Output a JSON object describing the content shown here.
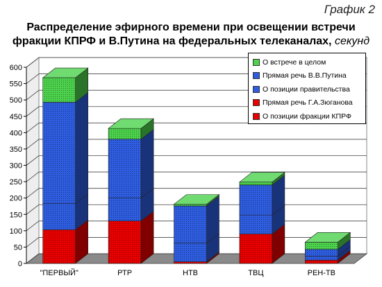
{
  "caption": "График 2",
  "title_line1": "Распределение эфирного времени при освещении встречи",
  "title_line2": "фракции КПРФ и В.Путина на федеральных телеканалах,",
  "title_unit": "секунд",
  "chart_data": {
    "type": "bar",
    "stacked": true,
    "three_d": true,
    "categories": [
      "\"ПЕРВЫЙ\"",
      "РТР",
      "НТВ",
      "ТВЦ",
      "РЕН-ТВ"
    ],
    "series": [
      {
        "name": "О позиции фракции КПРФ",
        "color": "#e80000",
        "values": [
          103,
          130,
          5,
          90,
          10
        ]
      },
      {
        "name": "Прямая речь Г.А.Зюганова",
        "color": "#e80000",
        "values": [
          0,
          0,
          0,
          0,
          0
        ]
      },
      {
        "name": "О позиции правительства",
        "color": "#2e5de0",
        "values": [
          80,
          70,
          57,
          58,
          12
        ]
      },
      {
        "name": "Прямая речь В.В.Путина",
        "color": "#2e5de0",
        "values": [
          310,
          180,
          114,
          92,
          21
        ]
      },
      {
        "name": "О встрече в целом",
        "color": "#4cd24c",
        "values": [
          75,
          33,
          5,
          9,
          22
        ]
      }
    ],
    "legend_order": [
      4,
      3,
      2,
      1,
      0
    ],
    "y_ticks": [
      "0",
      "50",
      "100",
      "150",
      "200",
      "250",
      "300",
      "350",
      "400",
      "450",
      "500",
      "550",
      "600"
    ],
    "ylim": [
      0,
      600
    ],
    "grid": true,
    "legend_position": "top-right"
  }
}
